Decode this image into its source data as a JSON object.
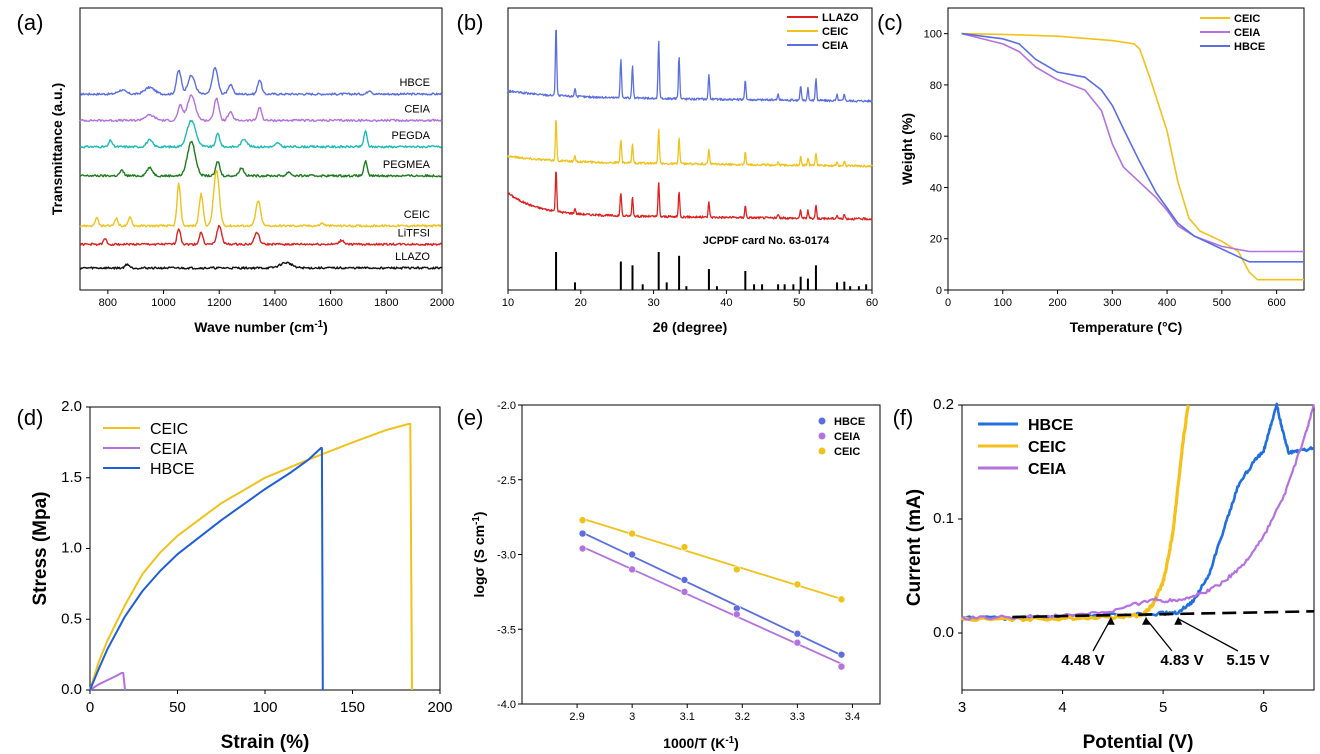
{
  "chart_data": [
    {
      "id": "a",
      "panel_label": "(a)",
      "type": "line",
      "title": "",
      "xlabel": "Wave number (cm",
      "xlabel_sup": "-1",
      "xlabel_end": ")",
      "ylabel": "Transmittance (a.u.)",
      "xlim": [
        700,
        2000
      ],
      "xticks": [
        800,
        1000,
        1200,
        1400,
        1600,
        1800,
        2000
      ],
      "series": [
        {
          "name": "HBCE",
          "color": "#5b6ee1",
          "offset": 6.6,
          "peaks": [
            [
              1055,
              0.9,
              12
            ],
            [
              1100,
              0.7,
              18
            ],
            [
              1185,
              1.0,
              14
            ],
            [
              1240,
              0.35,
              12
            ],
            [
              1345,
              0.55,
              10
            ],
            [
              950,
              0.25,
              25
            ],
            [
              850,
              0.15,
              20
            ],
            [
              1740,
              0.15,
              10
            ]
          ]
        },
        {
          "name": "CEIA",
          "color": "#b472de",
          "offset": 5.6,
          "peaks": [
            [
              1060,
              0.55,
              12
            ],
            [
              1100,
              0.95,
              20
            ],
            [
              1190,
              0.85,
              12
            ],
            [
              1345,
              0.5,
              10
            ],
            [
              950,
              0.2,
              25
            ],
            [
              1240,
              0.3,
              12
            ]
          ]
        },
        {
          "name": "PEGDA",
          "color": "#1fbab6",
          "offset": 4.6,
          "peaks": [
            [
              1100,
              1.0,
              22
            ],
            [
              1195,
              0.5,
              10
            ],
            [
              1290,
              0.3,
              14
            ],
            [
              1725,
              0.6,
              8
            ],
            [
              810,
              0.25,
              8
            ],
            [
              950,
              0.25,
              15
            ],
            [
              1410,
              0.15,
              10
            ]
          ]
        },
        {
          "name": "PEGMEA",
          "color": "#1f7a1f",
          "offset": 3.5,
          "peaks": [
            [
              1100,
              1.3,
              20
            ],
            [
              1195,
              0.55,
              10
            ],
            [
              1280,
              0.3,
              12
            ],
            [
              1725,
              0.55,
              8
            ],
            [
              950,
              0.3,
              15
            ],
            [
              850,
              0.2,
              10
            ],
            [
              1450,
              0.15,
              10
            ]
          ]
        },
        {
          "name": "CEIC",
          "color": "#f0c21c",
          "offset": 1.6,
          "peaks": [
            [
              1055,
              1.6,
              9
            ],
            [
              1135,
              1.2,
              10
            ],
            [
              1190,
              2.1,
              14
            ],
            [
              1340,
              0.95,
              12
            ],
            [
              760,
              0.3,
              8
            ],
            [
              830,
              0.3,
              8
            ],
            [
              880,
              0.35,
              8
            ],
            [
              1570,
              0.1,
              10
            ]
          ]
        },
        {
          "name": "LiTFSI",
          "color": "#dd2020",
          "offset": 0.9,
          "peaks": [
            [
              1055,
              0.6,
              9
            ],
            [
              1135,
              0.45,
              9
            ],
            [
              1200,
              0.7,
              12
            ],
            [
              1335,
              0.45,
              12
            ],
            [
              790,
              0.2,
              8
            ],
            [
              1640,
              0.15,
              12
            ]
          ]
        },
        {
          "name": "LLAZO",
          "color": "#111111",
          "offset": 0.0,
          "peaks": [
            [
              870,
              0.15,
              10
            ],
            [
              1440,
              0.2,
              30
            ]
          ]
        }
      ]
    },
    {
      "id": "b",
      "panel_label": "(b)",
      "type": "line",
      "title": "",
      "xlabel": "2θ (degree)",
      "ylabel": "",
      "xlim": [
        10,
        60
      ],
      "xticks": [
        10,
        20,
        30,
        40,
        50,
        60
      ],
      "series": [
        {
          "name": "LLAZO",
          "color": "#dd2020",
          "offset": 1.05
        },
        {
          "name": "CEIC",
          "color": "#f0c21c",
          "offset": 2.15
        },
        {
          "name": "CEIA",
          "color": "#5b6ee1",
          "offset": 3.2
        }
      ],
      "pattern_peaks": [
        16.6,
        19.2,
        25.5,
        27.1,
        30.7,
        33.5,
        37.6,
        42.6,
        47.1,
        50.2,
        51.2,
        52.3,
        55.2,
        56.2
      ],
      "reference_card": {
        "label": "JCPDF card No. 63-0174",
        "lines": [
          16.6,
          19.2,
          25.5,
          27.1,
          28.5,
          30.7,
          31.8,
          33.5,
          34.5,
          37.6,
          38.7,
          42.6,
          43.8,
          44.9,
          47.1,
          48.0,
          49.2,
          50.2,
          51.2,
          52.3,
          55.2,
          56.2,
          57.0,
          58.2,
          59.2
        ],
        "heights": [
          1.0,
          0.2,
          0.75,
          0.65,
          0.15,
          1.0,
          0.2,
          0.9,
          0.1,
          0.55,
          0.1,
          0.5,
          0.15,
          0.15,
          0.15,
          0.15,
          0.15,
          0.35,
          0.3,
          0.65,
          0.2,
          0.22,
          0.1,
          0.1,
          0.15
        ]
      }
    },
    {
      "id": "c",
      "panel_label": "(c)",
      "type": "line",
      "title": "",
      "xlabel": "Temperature (°C)",
      "ylabel": "Weight (%)",
      "xlim": [
        0,
        650
      ],
      "ylim": [
        0,
        110
      ],
      "xticks": [
        0,
        100,
        200,
        300,
        400,
        500,
        600
      ],
      "yticks": [
        0,
        20,
        40,
        60,
        80,
        100
      ],
      "series": [
        {
          "name": "CEIC",
          "color": "#f0c21c",
          "x": [
            25,
            100,
            200,
            300,
            340,
            350,
            370,
            400,
            420,
            440,
            460,
            500,
            530,
            550,
            565,
            650
          ],
          "y": [
            100,
            99.7,
            99,
            97.3,
            96,
            94,
            82,
            62,
            42,
            28,
            23,
            19,
            15,
            7,
            4,
            4
          ]
        },
        {
          "name": "CEIA",
          "color": "#b472de",
          "x": [
            25,
            100,
            130,
            160,
            200,
            250,
            280,
            300,
            320,
            350,
            380,
            400,
            420,
            450,
            500,
            550,
            650
          ],
          "y": [
            100,
            96,
            93,
            87,
            82,
            78,
            70,
            57,
            48,
            42,
            36,
            31,
            25,
            21,
            17,
            15,
            15
          ]
        },
        {
          "name": "HBCE",
          "color": "#5b6ee1",
          "x": [
            25,
            100,
            130,
            160,
            200,
            250,
            280,
            300,
            320,
            350,
            380,
            400,
            420,
            450,
            500,
            550,
            650
          ],
          "y": [
            100,
            98,
            96,
            90,
            85,
            83,
            78,
            72,
            63,
            50,
            38,
            32,
            26,
            21,
            16,
            11,
            11
          ]
        }
      ]
    },
    {
      "id": "d",
      "panel_label": "(d)",
      "type": "line",
      "title": "",
      "xlabel": "Strain (%)",
      "ylabel": "Stress (Mpa)",
      "xlim": [
        0,
        200
      ],
      "ylim": [
        0,
        2.0
      ],
      "xticks": [
        0,
        50,
        100,
        150,
        200
      ],
      "yticks": [
        0.0,
        0.5,
        1.0,
        1.5,
        2.0
      ],
      "ytick_labels": [
        "0.0",
        "0.5",
        "1.0",
        "1.5",
        "2.0"
      ],
      "series": [
        {
          "name": "CEIC",
          "color": "#f0c21c",
          "x": [
            0,
            5,
            10,
            20,
            30,
            40,
            50,
            75,
            100,
            125,
            150,
            170,
            182,
            183,
            184
          ],
          "y": [
            0,
            0.2,
            0.35,
            0.6,
            0.82,
            0.97,
            1.09,
            1.32,
            1.5,
            1.63,
            1.75,
            1.84,
            1.88,
            1.88,
            0
          ]
        },
        {
          "name": "CEIA",
          "color": "#b472de",
          "x": [
            0,
            5,
            10,
            15,
            18,
            19,
            20
          ],
          "y": [
            0,
            0.04,
            0.07,
            0.1,
            0.12,
            0.12,
            0
          ]
        },
        {
          "name": "HBCE",
          "color": "#1f5fd6",
          "x": [
            0,
            5,
            10,
            20,
            30,
            40,
            50,
            75,
            100,
            115,
            125,
            132,
            132.5,
            133
          ],
          "y": [
            0,
            0.15,
            0.29,
            0.52,
            0.7,
            0.84,
            0.96,
            1.2,
            1.42,
            1.54,
            1.63,
            1.71,
            1.71,
            0
          ]
        }
      ]
    },
    {
      "id": "e",
      "panel_label": "(e)",
      "type": "scatter",
      "title": "",
      "xlabel": "1000/T (K",
      "xlabel_sup": "-1",
      "xlabel_end": ")",
      "ylabel": "logσ (S cm",
      "ylabel_sup": "-1",
      "ylabel_end": ")",
      "xlim": [
        2.8,
        3.45
      ],
      "ylim": [
        -4.0,
        -2.0
      ],
      "xticks": [
        2.9,
        3.0,
        3.1,
        3.2,
        3.3,
        3.4
      ],
      "yticks": [
        -4.0,
        -3.5,
        -3.0,
        -2.5,
        -2.0
      ],
      "ytick_labels": [
        "-4.0",
        "-3.5",
        "-3.0",
        "-2.5",
        "-2.0"
      ],
      "series": [
        {
          "name": "HBCE",
          "color": "#5b6ee1",
          "x": [
            2.91,
            3.0,
            3.095,
            3.19,
            3.3,
            3.38
          ],
          "y": [
            -2.86,
            -3.0,
            -3.17,
            -3.36,
            -3.53,
            -3.67
          ]
        },
        {
          "name": "CEIA",
          "color": "#b472de",
          "x": [
            2.91,
            3.0,
            3.095,
            3.19,
            3.3,
            3.38
          ],
          "y": [
            -2.96,
            -3.1,
            -3.25,
            -3.4,
            -3.59,
            -3.75
          ]
        },
        {
          "name": "CEIC",
          "color": "#f0c21c",
          "x": [
            2.91,
            3.0,
            3.095,
            3.19,
            3.3,
            3.38
          ],
          "y": [
            -2.77,
            -2.86,
            -2.95,
            -3.1,
            -3.2,
            -3.3
          ]
        }
      ]
    },
    {
      "id": "f",
      "panel_label": "(f)",
      "type": "line",
      "title": "",
      "xlabel": "Potential (V)",
      "ylabel": "Current (mA)",
      "xlim": [
        3.0,
        6.5
      ],
      "ylim": [
        -0.05,
        0.2
      ],
      "xticks": [
        3,
        4,
        5,
        6
      ],
      "yticks": [
        0.0,
        0.1,
        0.2
      ],
      "ytick_labels": [
        "0.0",
        "0.1",
        "0.2"
      ],
      "series": [
        {
          "name": "HBCE",
          "color": "#1f6fe0",
          "x": [
            3.0,
            3.5,
            4.0,
            4.5,
            5.0,
            5.15,
            5.3,
            5.45,
            5.6,
            5.75,
            5.9,
            6.0,
            6.08,
            6.13,
            6.18,
            6.25,
            6.35,
            6.5
          ],
          "y": [
            0.013,
            0.013,
            0.014,
            0.016,
            0.017,
            0.018,
            0.028,
            0.05,
            0.09,
            0.13,
            0.15,
            0.16,
            0.185,
            0.2,
            0.18,
            0.158,
            0.16,
            0.162
          ]
        },
        {
          "name": "CEIC",
          "color": "#f6bf1a",
          "x": [
            3.0,
            3.5,
            4.0,
            4.5,
            4.8,
            4.9,
            5.0,
            5.05,
            5.1,
            5.15,
            5.2,
            5.25
          ],
          "y": [
            0.012,
            0.012,
            0.013,
            0.014,
            0.016,
            0.025,
            0.045,
            0.065,
            0.09,
            0.13,
            0.17,
            0.2
          ]
        },
        {
          "name": "CEIA",
          "color": "#b472de",
          "x": [
            3.0,
            3.5,
            4.0,
            4.5,
            4.9,
            5.0,
            5.2,
            5.4,
            5.6,
            5.8,
            6.0,
            6.2,
            6.4,
            6.5
          ],
          "y": [
            0.013,
            0.014,
            0.015,
            0.019,
            0.03,
            0.028,
            0.03,
            0.035,
            0.045,
            0.06,
            0.085,
            0.12,
            0.17,
            0.2
          ]
        }
      ],
      "baseline": {
        "x": [
          3.5,
          6.5
        ],
        "y": [
          0.014,
          0.019
        ]
      },
      "annotations": [
        {
          "text": "4.48 V",
          "x": 4.48
        },
        {
          "text": "4.83 V",
          "x": 4.83
        },
        {
          "text": "5.15 V",
          "x": 5.15
        }
      ]
    }
  ]
}
